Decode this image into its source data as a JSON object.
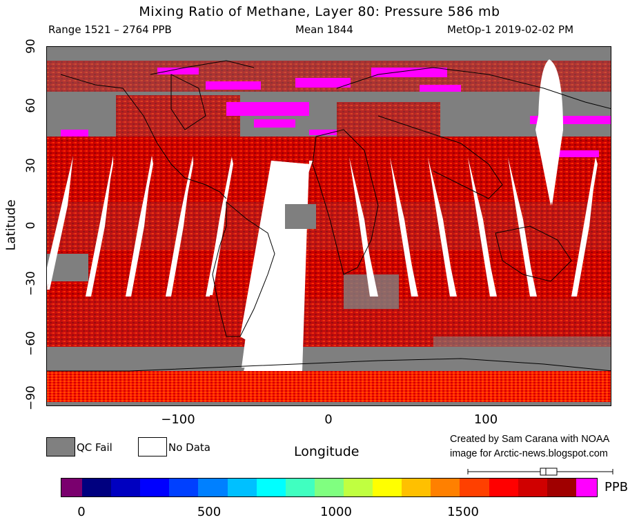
{
  "header": {
    "title": "Mixing Ratio of Methane, Layer 80: Pressure 586 mb",
    "range": "Range 1521 – 2764 PPB",
    "mean": "Mean 1844",
    "satellite": "MetOp-1 2019-02-02 PM"
  },
  "axes": {
    "ylabel": "Latitude",
    "xlabel": "Longitude",
    "yticks": [
      "90",
      "60",
      "30",
      "0",
      "−30",
      "−60",
      "−90"
    ],
    "xticks": [
      "−100",
      "0",
      "100"
    ]
  },
  "legend": {
    "qc_fail": "QC Fail",
    "no_data": "No Data",
    "qc_color": "#808080",
    "nodata_color": "#ffffff"
  },
  "credit": {
    "line1": "Created by Sam Carana with NOAA",
    "line2": "image for Arctic-news.blogspot.com"
  },
  "colorbar": {
    "unit": "PPB",
    "ticks": [
      "0",
      "500",
      "1000",
      "1500"
    ],
    "colors": [
      "#7a006e",
      "#00007f",
      "#0000c0",
      "#0000ff",
      "#0040ff",
      "#0080ff",
      "#00c0ff",
      "#00ffff",
      "#40ffc0",
      "#80ff80",
      "#c0ff40",
      "#ffff00",
      "#ffc000",
      "#ff8000",
      "#ff4000",
      "#ff0000",
      "#d00000",
      "#a00000",
      "#ff00ff"
    ]
  }
}
